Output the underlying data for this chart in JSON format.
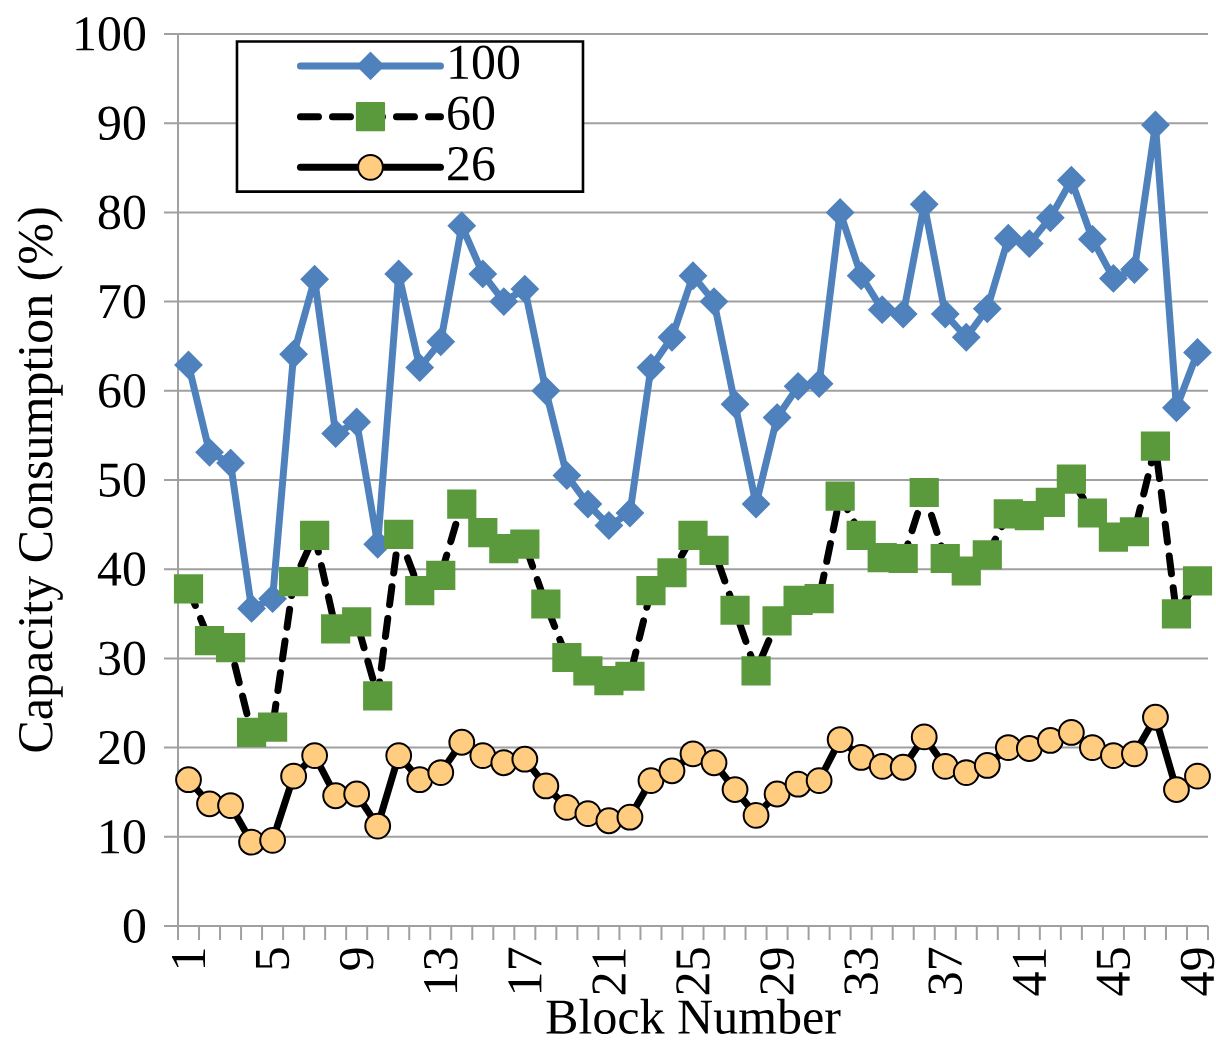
{
  "chart_data": {
    "type": "line",
    "xlabel": "Block Number",
    "ylabel": "Capacity Consumption (%)",
    "categories": [
      "1",
      null,
      null,
      null,
      "5",
      null,
      null,
      null,
      "9",
      null,
      null,
      null,
      "13",
      null,
      null,
      null,
      "17",
      null,
      null,
      null,
      "21",
      null,
      null,
      null,
      "25",
      null,
      null,
      null,
      "29",
      null,
      null,
      null,
      "33",
      null,
      null,
      null,
      "37",
      null,
      null,
      null,
      "41",
      null,
      null,
      null,
      "45",
      null,
      null,
      null,
      "49"
    ],
    "ylim": [
      0,
      100
    ],
    "yticks": [
      0,
      10,
      20,
      30,
      40,
      50,
      60,
      70,
      80,
      90,
      100
    ],
    "grid": "y",
    "legend": "top left",
    "series": [
      {
        "name": "100",
        "color": "#4f81bd",
        "marker": "diamond",
        "line_style": "solid",
        "values": [
          62.9,
          53.1,
          51.9,
          35.6,
          36.7,
          64.1,
          72.5,
          55.2,
          56.5,
          42.8,
          73.1,
          62.6,
          65.5,
          78.5,
          73.1,
          70.0,
          71.4,
          60.0,
          50.5,
          47.3,
          44.9,
          46.3,
          62.6,
          66.0,
          72.9,
          70.0,
          58.5,
          47.3,
          57.0,
          60.5,
          60.8,
          80.0,
          72.9,
          69.1,
          68.6,
          80.9,
          68.6,
          66.0,
          69.2,
          77.1,
          76.5,
          79.4,
          83.6,
          77.0,
          72.6,
          73.6,
          89.8,
          58.1,
          64.3
        ]
      },
      {
        "name": "60",
        "color": "#000000",
        "marker": "square",
        "line_style": "dashed",
        "values": [
          37.8,
          32.0,
          31.2,
          21.7,
          22.3,
          38.6,
          43.8,
          33.3,
          34.1,
          25.8,
          43.9,
          37.6,
          39.3,
          47.3,
          44.1,
          42.3,
          42.8,
          36.1,
          30.1,
          28.6,
          27.5,
          28.0,
          37.6,
          39.6,
          43.8,
          42.1,
          35.4,
          28.6,
          34.2,
          36.5,
          36.7,
          48.2,
          43.8,
          41.3,
          41.2,
          48.6,
          41.2,
          39.8,
          41.6,
          46.2,
          46.0,
          47.5,
          50.1,
          46.3,
          43.6,
          44.2,
          53.8,
          35.0,
          38.7
        ],
        "colors": [
          "#5b9a3c",
          "#5b9a3c",
          "#5b9a3c",
          "#5b9a3c",
          "#5b9a3c",
          "#5b9a3c",
          "#5b9a3c",
          "#5b9a3c",
          "#5b9a3c",
          "#5b9a3c",
          "#5b9a3c",
          "#5b9a3c",
          "#5b9a3c",
          "#5b9a3c",
          "#5b9a3c",
          "#5b9a3c",
          "#5b9a3c",
          "#5b9a3c",
          "#5b9a3c",
          "#5b9a3c",
          "#5b9a3c",
          "#5b9a3c",
          "#5b9a3c",
          "#5b9a3c",
          "#5b9a3c",
          "#5b9a3c",
          "#5b9a3c",
          "#5b9a3c",
          "#5b9a3c",
          "#5b9a3c",
          "#5b9a3c",
          "#5b9a3c",
          "#5b9a3c",
          "#5b9a3c",
          "#5b9a3c",
          "#5b9a3c",
          "#5b9a3c",
          "#5b9a3c",
          "#5b9a3c",
          "#5b9a3c",
          "#5b9a3c",
          "#5b9a3c",
          "#5b9a3c",
          "#5b9a3c",
          "#5b9a3c",
          "#5b9a3c",
          "#5b9a3c",
          "#5b9a3c",
          "#5b9a3c"
        ]
      },
      {
        "name": "26",
        "color": "#000000",
        "marker": "circle",
        "line_style": "solid",
        "values": [
          16.4,
          13.7,
          13.5,
          9.4,
          9.6,
          16.8,
          19.1,
          14.6,
          14.8,
          11.2,
          19.1,
          16.4,
          17.2,
          20.6,
          19.1,
          18.3,
          18.7,
          15.7,
          13.3,
          12.6,
          11.8,
          12.2,
          16.3,
          17.4,
          19.3,
          18.3,
          15.3,
          12.4,
          14.8,
          15.9,
          16.3,
          20.9,
          18.9,
          17.9,
          17.8,
          21.2,
          17.9,
          17.2,
          18.0,
          20.0,
          19.9,
          20.8,
          21.7,
          20.0,
          19.1,
          19.3,
          23.4,
          15.3,
          16.8
        ],
        "colors": [
          "#ffcc80",
          "#ffcc80",
          "#ffcc80",
          "#ffcc80",
          "#ffcc80",
          "#ffcc80",
          "#ffcc80",
          "#ffcc80",
          "#ffcc80",
          "#ffcc80",
          "#ffcc80",
          "#ffcc80",
          "#ffcc80",
          "#ffcc80",
          "#ffcc80",
          "#ffcc80",
          "#ffcc80",
          "#ffcc80",
          "#ffcc80",
          "#ffcc80",
          "#ffcc80",
          "#ffcc80",
          "#ffcc80",
          "#ffcc80",
          "#ffcc80",
          "#ffcc80",
          "#ffcc80",
          "#ffcc80",
          "#ffcc80",
          "#ffcc80",
          "#ffcc80",
          "#ffcc80",
          "#ffcc80",
          "#ffcc80",
          "#ffcc80",
          "#ffcc80",
          "#ffcc80",
          "#ffcc80",
          "#ffcc80",
          "#ffcc80",
          "#ffcc80",
          "#ffcc80",
          "#ffcc80",
          "#ffcc80",
          "#ffcc80",
          "#ffcc80",
          "#ffcc80",
          "#ffcc80",
          "#ffcc80"
        ]
      }
    ]
  }
}
